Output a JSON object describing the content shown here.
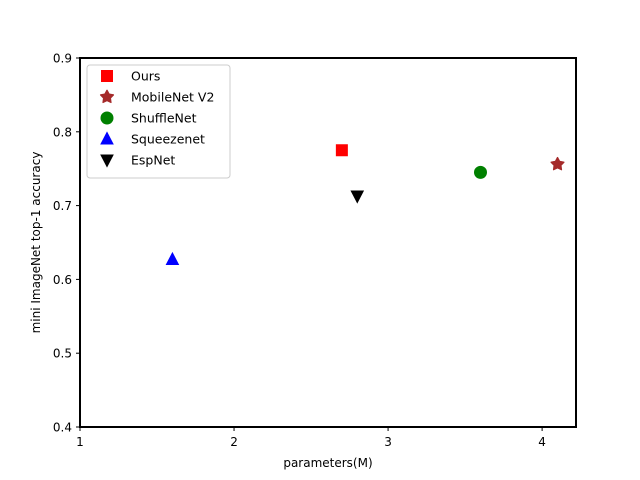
{
  "chart_data": {
    "type": "scatter",
    "title": "",
    "xlabel": "parameters(M)",
    "ylabel": "mini ImageNet top-1 accuracy",
    "xlim": [
      1,
      4.22
    ],
    "ylim": [
      0.4,
      0.9
    ],
    "xticks": [
      1,
      2,
      3,
      4
    ],
    "xtick_labels": [
      "1",
      "2",
      "3",
      "4"
    ],
    "yticks": [
      0.4,
      0.5,
      0.6,
      0.7,
      0.8,
      0.9
    ],
    "ytick_labels": [
      "0.4",
      "0.5",
      "0.6",
      "0.7",
      "0.8",
      "0.9"
    ],
    "grid": false,
    "legend_position": "top-left",
    "series": [
      {
        "name": "Ours",
        "marker": "square",
        "color": "#ff0000",
        "x": 2.7,
        "y": 0.775
      },
      {
        "name": "MobileNet V2",
        "marker": "star",
        "color": "#a52a2a",
        "x": 4.1,
        "y": 0.756
      },
      {
        "name": "ShuffleNet",
        "marker": "circle",
        "color": "#008000",
        "x": 3.6,
        "y": 0.745
      },
      {
        "name": "Squeezenet",
        "marker": "triangle-up",
        "color": "#0000ff",
        "x": 1.6,
        "y": 0.627
      },
      {
        "name": "EspNet",
        "marker": "triangle-down",
        "color": "#000000",
        "x": 2.8,
        "y": 0.713
      }
    ]
  }
}
